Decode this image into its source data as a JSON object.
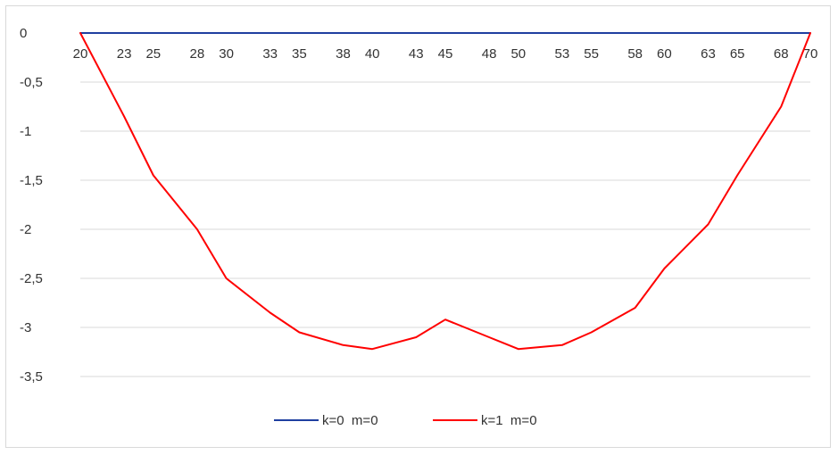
{
  "chart_data": {
    "type": "line",
    "x": [
      20,
      23,
      25,
      28,
      30,
      33,
      35,
      38,
      40,
      43,
      45,
      48,
      50,
      53,
      55,
      58,
      60,
      63,
      65,
      68,
      70
    ],
    "x_tick_labels": [
      "20",
      "23",
      "25",
      "28",
      "30",
      "33",
      "35",
      "38",
      "40",
      "43",
      "45",
      "48",
      "50",
      "53",
      "55",
      "58",
      "60",
      "63",
      "65",
      "68",
      "70"
    ],
    "y_tick_labels": [
      "0",
      "-0,5",
      "-1",
      "-1,5",
      "-2",
      "-2,5",
      "-3",
      "-3,5"
    ],
    "y_ticks": [
      0,
      -0.5,
      -1,
      -1.5,
      -2,
      -2.5,
      -3,
      -3.5
    ],
    "ylim": [
      -3.5,
      0
    ],
    "grid": true,
    "legend_position": "bottom",
    "series": [
      {
        "name": "k=0  m=0",
        "color": "#1f3fa0",
        "values": [
          0,
          0,
          0,
          0,
          0,
          0,
          0,
          0,
          0,
          0,
          0,
          0,
          0,
          0,
          0,
          0,
          0,
          0,
          0,
          0,
          0
        ]
      },
      {
        "name": "k=1  m=0",
        "color": "#ff0000",
        "values": [
          0,
          -0.85,
          -1.45,
          -2.0,
          -2.5,
          -2.85,
          -3.05,
          -3.18,
          -3.22,
          -3.1,
          -2.92,
          -3.1,
          -3.22,
          -3.18,
          -3.05,
          -2.8,
          -2.4,
          -1.95,
          -1.45,
          -0.75,
          0
        ]
      }
    ]
  }
}
